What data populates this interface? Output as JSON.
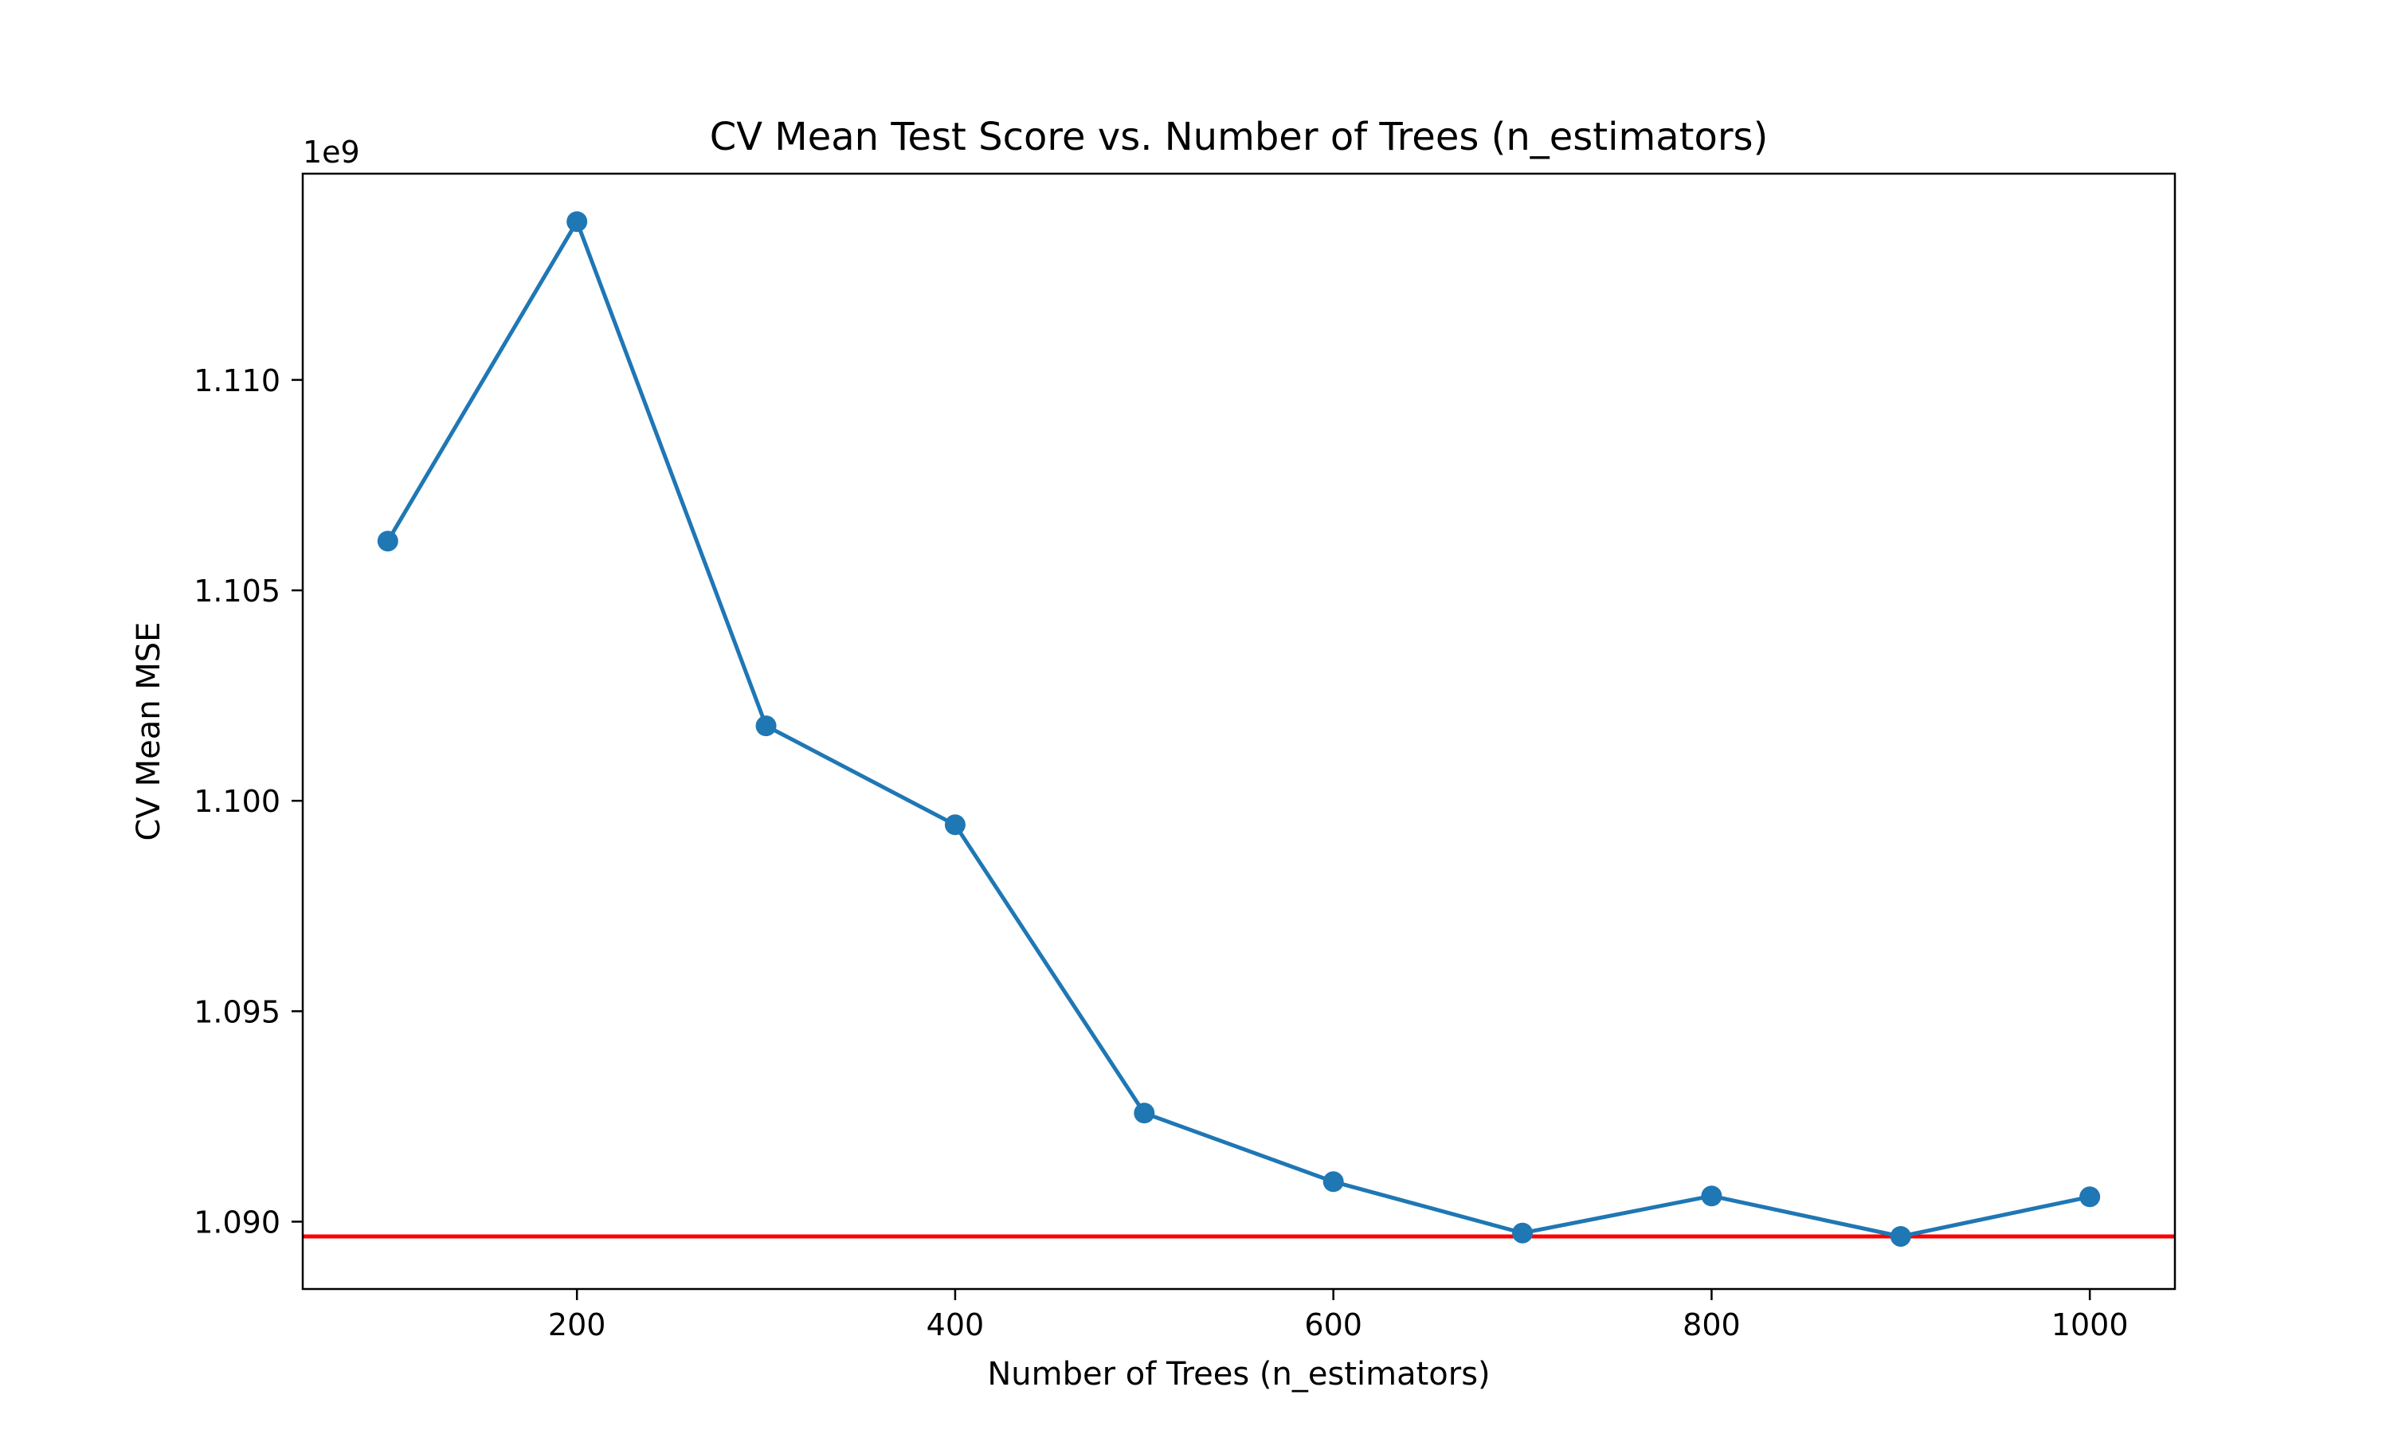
{
  "chart_data": {
    "type": "line",
    "title": "CV Mean Test Score vs. Number of Trees (n_estimators)",
    "xlabel": "Number of Trees (n_estimators)",
    "ylabel": "CV Mean MSE",
    "y_offset_text": "1e9",
    "x": [
      100,
      200,
      300,
      400,
      500,
      600,
      700,
      800,
      900,
      1000
    ],
    "series": [
      {
        "values": [
          1.10617,
          1.11376,
          1.10178,
          1.09943,
          1.09258,
          1.09095,
          1.08973,
          1.09061,
          1.08965,
          1.09059
        ],
        "color": "#1f77b4",
        "marker": "circle"
      }
    ],
    "reference_line": {
      "orientation": "horizontal",
      "y": 1.08965,
      "color": "#ff0000"
    },
    "xlim": [
      55,
      1045
    ],
    "ylim": [
      1.0884,
      1.1149
    ],
    "x_ticks": [
      {
        "value": 200,
        "label": "200"
      },
      {
        "value": 400,
        "label": "400"
      },
      {
        "value": 600,
        "label": "600"
      },
      {
        "value": 800,
        "label": "800"
      },
      {
        "value": 1000,
        "label": "1000"
      }
    ],
    "y_ticks": [
      {
        "value": 1.09,
        "label": "1.090"
      },
      {
        "value": 1.095,
        "label": "1.095"
      },
      {
        "value": 1.1,
        "label": "1.100"
      },
      {
        "value": 1.105,
        "label": "1.105"
      },
      {
        "value": 1.11,
        "label": "1.110"
      }
    ],
    "grid": false,
    "legend": "none"
  }
}
